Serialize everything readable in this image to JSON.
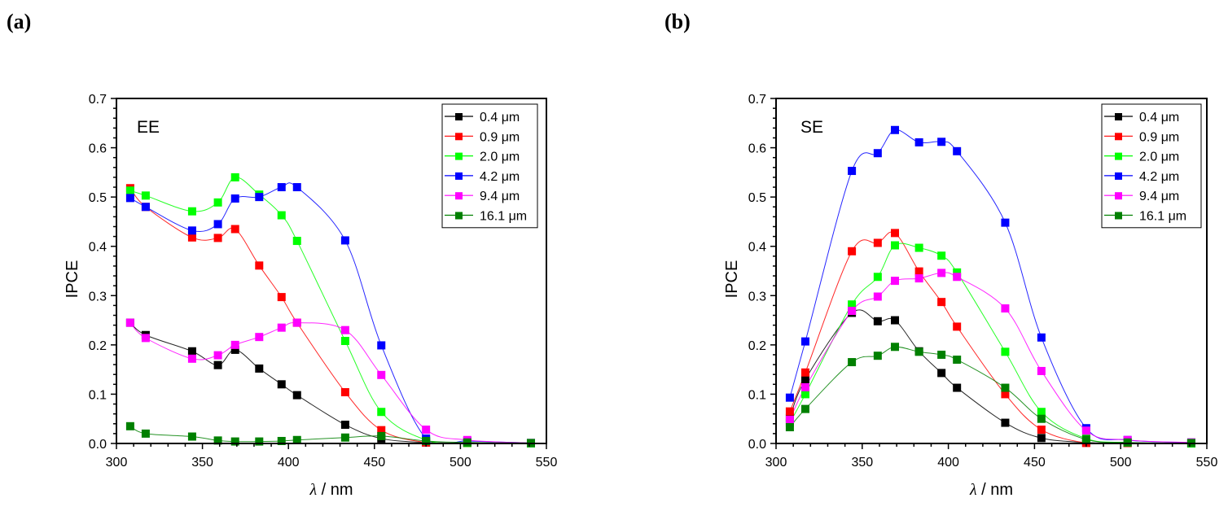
{
  "panels": [
    {
      "label": "(a)"
    },
    {
      "label": "(b)"
    }
  ],
  "chart_data": [
    {
      "type": "line",
      "panel": "(a)",
      "inset_label": "EE",
      "xlabel_italic": "λ",
      "xlabel_rest": " / nm",
      "ylabel": "IPCE",
      "xlim": [
        300,
        550
      ],
      "ylim": [
        0.0,
        0.7
      ],
      "xticks": [
        300,
        350,
        400,
        450,
        500,
        550
      ],
      "xtick_labels": [
        "300",
        "350",
        "400",
        "450",
        "500",
        "550"
      ],
      "yticks": [
        0.0,
        0.1,
        0.2,
        0.3,
        0.4,
        0.5,
        0.6,
        0.7
      ],
      "ytick_labels": [
        "0.0",
        "0.1",
        "0.2",
        "0.3",
        "0.4",
        "0.5",
        "0.6",
        "0.7"
      ],
      "legend_position": "top-right",
      "markers": "square",
      "x": [
        308,
        317,
        344,
        359,
        369,
        383,
        396,
        405,
        433,
        454,
        480,
        504,
        541
      ],
      "series": [
        {
          "name": "0.4 μm",
          "color": "#000000",
          "values": [
            0.245,
            0.22,
            0.187,
            0.159,
            0.19,
            0.152,
            0.12,
            0.098,
            0.038,
            0.01,
            0.002,
            0.001,
            0.0
          ]
        },
        {
          "name": "0.9 μm",
          "color": "#ff0000",
          "values": [
            0.518,
            0.48,
            0.418,
            0.417,
            0.435,
            0.361,
            0.297,
            0.245,
            0.104,
            0.027,
            0.002,
            0.001,
            0.0
          ]
        },
        {
          "name": "2.0 μm",
          "color": "#00ff00",
          "values": [
            0.513,
            0.503,
            0.471,
            0.489,
            0.54,
            0.505,
            0.463,
            0.411,
            0.208,
            0.064,
            0.007,
            0.001,
            0.0
          ]
        },
        {
          "name": "4.2 μm",
          "color": "#0000ff",
          "values": [
            0.498,
            0.48,
            0.432,
            0.445,
            0.497,
            0.5,
            0.52,
            0.52,
            0.412,
            0.199,
            0.01,
            0.005,
            0.001
          ]
        },
        {
          "name": "9.4 μm",
          "color": "#ff00ff",
          "values": [
            0.245,
            0.214,
            0.172,
            0.179,
            0.2,
            0.216,
            0.235,
            0.245,
            0.23,
            0.139,
            0.028,
            0.007,
            0.001
          ]
        },
        {
          "name": "16.1 μm",
          "color": "#008000",
          "values": [
            0.035,
            0.02,
            0.014,
            0.006,
            0.004,
            0.004,
            0.005,
            0.007,
            0.012,
            0.015,
            0.005,
            0.002,
            0.001
          ]
        }
      ]
    },
    {
      "type": "line",
      "panel": "(b)",
      "inset_label": "SE",
      "xlabel_italic": "λ",
      "xlabel_rest": " / nm",
      "ylabel": "IPCE",
      "xlim": [
        300,
        550
      ],
      "ylim": [
        0.0,
        0.7
      ],
      "xticks": [
        300,
        350,
        400,
        450,
        500,
        550
      ],
      "xtick_labels": [
        "300",
        "350",
        "400",
        "450",
        "500",
        "550"
      ],
      "yticks": [
        0.0,
        0.1,
        0.2,
        0.3,
        0.4,
        0.5,
        0.6,
        0.7
      ],
      "ytick_labels": [
        "0.0",
        "0.1",
        "0.2",
        "0.3",
        "0.4",
        "0.5",
        "0.6",
        "0.7"
      ],
      "legend_position": "top-right",
      "markers": "square",
      "x": [
        308,
        317,
        344,
        359,
        369,
        383,
        396,
        405,
        433,
        454,
        480,
        504,
        541
      ],
      "series": [
        {
          "name": "0.4 μm",
          "color": "#000000",
          "values": [
            0.052,
            0.13,
            0.265,
            0.248,
            0.25,
            0.187,
            0.143,
            0.113,
            0.042,
            0.011,
            0.002,
            0.001,
            0.0
          ]
        },
        {
          "name": "0.9 μm",
          "color": "#ff0000",
          "values": [
            0.065,
            0.144,
            0.39,
            0.407,
            0.427,
            0.349,
            0.287,
            0.237,
            0.1,
            0.028,
            0.001,
            0.001,
            0.0
          ]
        },
        {
          "name": "2.0 μm",
          "color": "#00ff00",
          "values": [
            0.042,
            0.1,
            0.282,
            0.338,
            0.402,
            0.397,
            0.381,
            0.347,
            0.186,
            0.064,
            0.01,
            0.002,
            0.0
          ]
        },
        {
          "name": "4.2 μm",
          "color": "#0000ff",
          "values": [
            0.093,
            0.207,
            0.553,
            0.589,
            0.636,
            0.611,
            0.612,
            0.593,
            0.448,
            0.215,
            0.031,
            0.007,
            0.002
          ]
        },
        {
          "name": "9.4 μm",
          "color": "#ff00ff",
          "values": [
            0.048,
            0.114,
            0.269,
            0.298,
            0.33,
            0.335,
            0.346,
            0.338,
            0.274,
            0.147,
            0.026,
            0.007,
            0.002
          ]
        },
        {
          "name": "16.1 μm",
          "color": "#008000",
          "values": [
            0.033,
            0.07,
            0.165,
            0.178,
            0.196,
            0.186,
            0.18,
            0.17,
            0.113,
            0.05,
            0.008,
            0.002,
            0.001
          ]
        }
      ]
    }
  ]
}
